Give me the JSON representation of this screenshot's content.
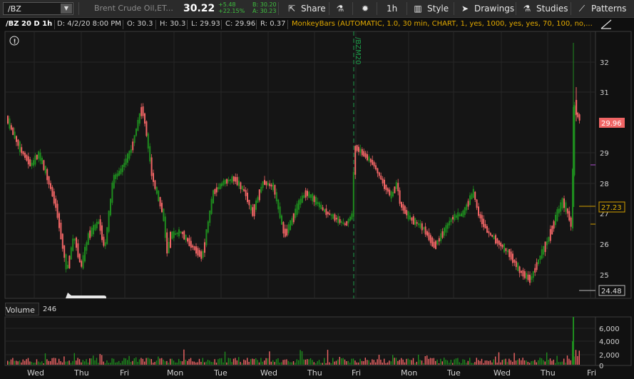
{
  "toolbar": {
    "symbol": "/BZ",
    "description": "Brent Crude Oil,ET...",
    "last": "30.22",
    "change": "+5.48",
    "change_pct": "+22.15%",
    "bid": "B: 30.20",
    "ask": "A: 30.23",
    "share_label": "Share",
    "interval_label": "1h",
    "style_label": "Style",
    "drawings_label": "Drawings",
    "studies_label": "Studies",
    "patterns_label": "Patterns"
  },
  "info": {
    "chart_name": "/BZ 20 D 1h",
    "date": "D: 4/2/20 8:00 PM",
    "open": "O: 30.3",
    "high": "H: 30.3",
    "low": "L: 29.93",
    "close": "C: 29.96",
    "range": "R: 0.37",
    "study": "MonkeyBars (AUTOMATIC, 1.0, 30 min, CHART, 1, yes, 1000, yes, yes, 70, 100, no,..."
  },
  "price_axis": {
    "ticks": [
      "32",
      "31",
      "29",
      "28",
      "27",
      "26",
      "25"
    ],
    "last_badge": "29.96",
    "level_badge": "27.23",
    "low_badge": "24.48"
  },
  "expiry_label": "/BZM20",
  "volume": {
    "label": "Volume",
    "value": "246",
    "ticks": [
      "6,000",
      "4,000",
      "2,000",
      "0"
    ]
  },
  "time_axis": [
    "Wed",
    "Thu",
    "Fri",
    "Mon",
    "Tue",
    "Wed",
    "Thu",
    "Fri",
    "Mon",
    "Tue",
    "Wed",
    "Thu",
    "Fri"
  ],
  "colors": {
    "up": "#1e8c1e",
    "down": "#f06565",
    "background": "#111111",
    "grid": "#262626",
    "expiry_line": "#1d9e4a",
    "level_line": "#d4a000"
  },
  "icons": {
    "share": "share-icon",
    "studies": "flask-icon",
    "style": "bars-style-icon",
    "drawings": "cursor-icon",
    "patterns": "patterns-icon",
    "settings": "gear-icon",
    "alert": "alert-icon"
  }
}
